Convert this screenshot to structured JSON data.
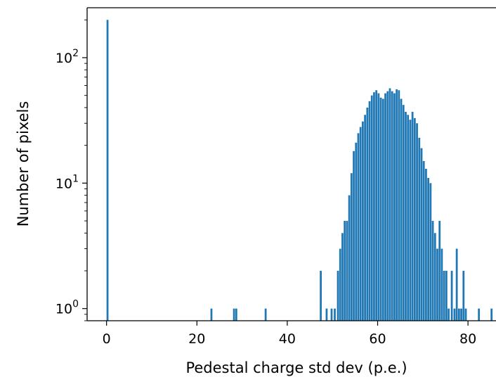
{
  "chart_data": {
    "type": "bar",
    "xlabel": "Pedestal charge std dev (p.e.)",
    "ylabel": "Number of pixels",
    "x_ticks": [
      0,
      20,
      40,
      60,
      80
    ],
    "x_tick_labels": [
      "0",
      "20",
      "40",
      "60",
      "80"
    ],
    "xlim": [
      -4.3,
      86.2
    ],
    "y_scale": "log",
    "ylim": [
      0.8,
      250
    ],
    "y_ticks": [
      1,
      10,
      100
    ],
    "y_tick_labels": [
      {
        "base": "10",
        "exp": "0"
      },
      {
        "base": "10",
        "exp": "1"
      },
      {
        "base": "10",
        "exp": "2"
      }
    ],
    "bin_width": 0.43,
    "bins": [
      [
        0.0,
        200
      ],
      [
        23.0,
        1
      ],
      [
        28.0,
        1
      ],
      [
        28.5,
        1
      ],
      [
        35.0,
        1
      ],
      [
        47.2,
        2
      ],
      [
        48.5,
        1
      ],
      [
        49.6,
        1
      ],
      [
        50.3,
        1
      ],
      [
        51.0,
        2
      ],
      [
        51.5,
        3
      ],
      [
        52.0,
        4
      ],
      [
        52.5,
        5
      ],
      [
        53.0,
        5
      ],
      [
        53.5,
        8
      ],
      [
        54.0,
        12
      ],
      [
        54.5,
        18
      ],
      [
        55.0,
        21
      ],
      [
        55.5,
        25
      ],
      [
        56.0,
        28
      ],
      [
        56.5,
        31
      ],
      [
        57.0,
        35
      ],
      [
        57.5,
        40
      ],
      [
        58.0,
        45
      ],
      [
        58.5,
        50
      ],
      [
        59.0,
        53
      ],
      [
        59.5,
        55
      ],
      [
        60.0,
        52
      ],
      [
        60.5,
        48
      ],
      [
        61.0,
        47
      ],
      [
        61.5,
        52
      ],
      [
        62.0,
        54
      ],
      [
        62.5,
        57
      ],
      [
        63.0,
        54
      ],
      [
        63.5,
        52
      ],
      [
        64.0,
        56
      ],
      [
        64.5,
        55
      ],
      [
        65.0,
        47
      ],
      [
        65.5,
        42
      ],
      [
        66.0,
        37
      ],
      [
        66.5,
        35
      ],
      [
        67.0,
        32
      ],
      [
        67.5,
        37
      ],
      [
        68.0,
        33
      ],
      [
        68.5,
        30
      ],
      [
        69.0,
        23
      ],
      [
        69.5,
        19
      ],
      [
        70.0,
        15
      ],
      [
        70.5,
        13
      ],
      [
        71.0,
        11
      ],
      [
        71.5,
        10
      ],
      [
        72.0,
        5
      ],
      [
        72.5,
        4
      ],
      [
        73.0,
        3
      ],
      [
        73.5,
        5
      ],
      [
        74.0,
        3
      ],
      [
        74.5,
        2
      ],
      [
        75.0,
        2
      ],
      [
        75.5,
        1
      ],
      [
        76.2,
        2
      ],
      [
        76.8,
        1
      ],
      [
        77.3,
        3
      ],
      [
        77.8,
        1
      ],
      [
        78.3,
        1
      ],
      [
        78.8,
        2
      ],
      [
        79.3,
        1
      ],
      [
        82.2,
        1
      ],
      [
        85.0,
        1
      ]
    ]
  }
}
